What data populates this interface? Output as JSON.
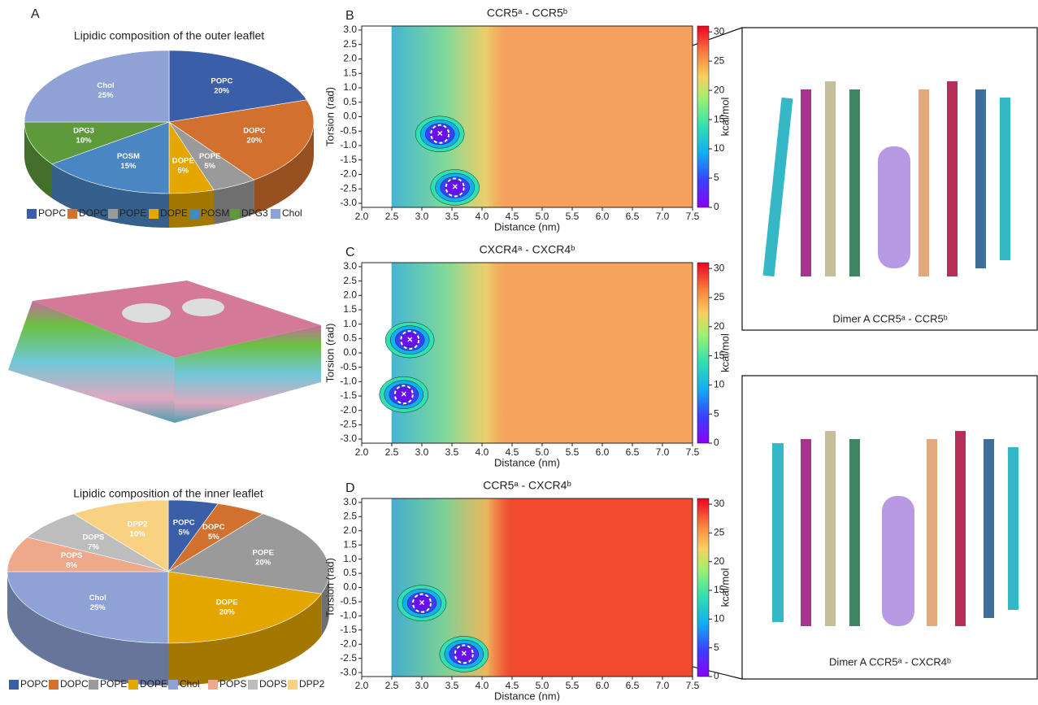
{
  "chart_data": [
    {
      "type": "pie",
      "panel": "A",
      "title": "Lipidic composition of the outer leaflet",
      "categories": [
        "POPC",
        "DOPC",
        "POPE",
        "DOPE",
        "POSM",
        "DPG3",
        "Chol"
      ],
      "values": [
        20,
        20,
        5,
        5,
        15,
        10,
        25
      ],
      "value_labels": [
        "20%",
        "20%",
        "5%",
        "5%",
        "15%",
        "10%",
        "25%"
      ],
      "colors": [
        "#3b5ea8",
        "#d2712d",
        "#9a9a9a",
        "#e3a700",
        "#4a86c1",
        "#5e9a3c",
        "#8ea2d5"
      ]
    },
    {
      "type": "pie",
      "title": "Lipidic composition of the inner leaflet",
      "categories": [
        "POPC",
        "DOPC",
        "POPE",
        "DOPE",
        "Chol",
        "POPS",
        "DOPS",
        "DPP2"
      ],
      "values": [
        5,
        5,
        20,
        20,
        25,
        8,
        7,
        10
      ],
      "value_labels": [
        "5%",
        "5%",
        "20%",
        "20%",
        "25%",
        "8%",
        "7%",
        "10%"
      ],
      "colors": [
        "#3b5ea8",
        "#d2712d",
        "#9a9a9a",
        "#e3a700",
        "#8ea2d5",
        "#eea88b",
        "#bdbdbd",
        "#f8d183"
      ]
    },
    {
      "type": "contour",
      "panel": "B",
      "title": "CCR5ᵃ  -  CCR5ᵇ",
      "xlabel": "Distance (nm)",
      "ylabel": "Torsion (rad)",
      "colorbar_label": "kcal/mol",
      "xlim": [
        2.0,
        7.5
      ],
      "ylim": [
        -3.14,
        3.14
      ],
      "xticks": [
        {
          "value": 2,
          "label": "2.0"
        },
        {
          "value": 2.5,
          "label": "2.5"
        },
        {
          "value": 3,
          "label": "3.0"
        },
        {
          "value": 3.5,
          "label": "3.5"
        },
        {
          "value": 4,
          "label": "4.0"
        },
        {
          "value": 4.5,
          "label": "4.5"
        },
        {
          "value": 5,
          "label": "5.0"
        },
        {
          "value": 5.5,
          "label": "5.5"
        },
        {
          "value": 6,
          "label": "6.0"
        },
        {
          "value": 6.5,
          "label": "6.5"
        },
        {
          "value": 7,
          "label": "7.0"
        },
        {
          "value": 7.5,
          "label": "7.5"
        }
      ],
      "yticks": [
        {
          "value": -3,
          "label": "-3.0"
        },
        {
          "value": -2.5,
          "label": "-2.5"
        },
        {
          "value": -2,
          "label": "-2.0"
        },
        {
          "value": -1.5,
          "label": "-1.5"
        },
        {
          "value": -1,
          "label": "-1.0"
        },
        {
          "value": -0.5,
          "label": "-0.5"
        },
        {
          "value": 0,
          "label": "0.0"
        },
        {
          "value": 0.5,
          "label": "0.5"
        },
        {
          "value": 1,
          "label": "1.0"
        },
        {
          "value": 1.5,
          "label": "1.5"
        },
        {
          "value": 2,
          "label": "2.0"
        },
        {
          "value": 2.5,
          "label": "2.5"
        },
        {
          "value": 3,
          "label": "3.0"
        }
      ],
      "clim": [
        0,
        31
      ],
      "cticks": [
        0,
        5,
        10,
        15,
        20,
        25,
        30
      ],
      "plateau_color": "#f5a05c",
      "minima": {
        "x": [
          3.3,
          3.55
        ],
        "y": [
          -0.6,
          -2.45
        ]
      }
    },
    {
      "type": "contour",
      "panel": "C",
      "title": "CXCR4ᵃ  -  CXCR4ᵇ",
      "xlabel": "Distance (nm)",
      "ylabel": "Torsion (rad)",
      "colorbar_label": "kcal/mol",
      "xlim": [
        2.0,
        7.5
      ],
      "ylim": [
        -3.14,
        3.14
      ],
      "xticks": [
        {
          "value": 2,
          "label": "2.0"
        },
        {
          "value": 2.5,
          "label": "2.5"
        },
        {
          "value": 3,
          "label": "3.0"
        },
        {
          "value": 3.5,
          "label": "3.5"
        },
        {
          "value": 4,
          "label": "4.0"
        },
        {
          "value": 4.5,
          "label": "4.5"
        },
        {
          "value": 5,
          "label": "5.0"
        },
        {
          "value": 5.5,
          "label": "5.5"
        },
        {
          "value": 6,
          "label": "6.0"
        },
        {
          "value": 6.5,
          "label": "6.5"
        },
        {
          "value": 7,
          "label": "7.0"
        },
        {
          "value": 7.5,
          "label": "7.5"
        }
      ],
      "yticks": [
        {
          "value": -3,
          "label": "-3.0"
        },
        {
          "value": -2.5,
          "label": "-2.5"
        },
        {
          "value": -2,
          "label": "-2.0"
        },
        {
          "value": -1.5,
          "label": "-1.5"
        },
        {
          "value": -1,
          "label": "-1.0"
        },
        {
          "value": -0.5,
          "label": "-0.5"
        },
        {
          "value": 0,
          "label": "0.0"
        },
        {
          "value": 0.5,
          "label": "0.5"
        },
        {
          "value": 1,
          "label": "1.0"
        },
        {
          "value": 1.5,
          "label": "1.5"
        },
        {
          "value": 2,
          "label": "2.0"
        },
        {
          "value": 2.5,
          "label": "2.5"
        },
        {
          "value": 3,
          "label": "3.0"
        }
      ],
      "clim": [
        0,
        31
      ],
      "cticks": [
        0,
        5,
        10,
        15,
        20,
        25,
        30
      ],
      "plateau_color": "#f6a35e",
      "minima": {
        "x": [
          2.8,
          2.7
        ],
        "y": [
          0.45,
          -1.45
        ]
      }
    },
    {
      "type": "contour",
      "panel": "D",
      "title": "CCR5ᵃ  -  CXCR4ᵇ",
      "xlabel": "Distance (nm)",
      "ylabel": "Torsion (rad)",
      "colorbar_label": "kcal/mol",
      "xlim": [
        2.0,
        7.5
      ],
      "ylim": [
        -3.14,
        3.14
      ],
      "xticks": [
        {
          "value": 2,
          "label": "2.0"
        },
        {
          "value": 2.5,
          "label": "2.5"
        },
        {
          "value": 3,
          "label": "3.0"
        },
        {
          "value": 3.5,
          "label": "3.5"
        },
        {
          "value": 4,
          "label": "4.0"
        },
        {
          "value": 4.5,
          "label": "4.5"
        },
        {
          "value": 5,
          "label": "5.0"
        },
        {
          "value": 5.5,
          "label": "5.5"
        },
        {
          "value": 6,
          "label": "6.0"
        },
        {
          "value": 6.5,
          "label": "6.5"
        },
        {
          "value": 7,
          "label": "7.0"
        },
        {
          "value": 7.5,
          "label": "7.5"
        }
      ],
      "yticks": [
        {
          "value": -3,
          "label": "-3.0"
        },
        {
          "value": -2.5,
          "label": "-2.5"
        },
        {
          "value": -2,
          "label": "-2.0"
        },
        {
          "value": -1.5,
          "label": "-1.5"
        },
        {
          "value": -1,
          "label": "-1.0"
        },
        {
          "value": -0.5,
          "label": "-0.5"
        },
        {
          "value": 0,
          "label": "0.0"
        },
        {
          "value": 0.5,
          "label": "0.5"
        },
        {
          "value": 1,
          "label": "1.0"
        },
        {
          "value": 1.5,
          "label": "1.5"
        },
        {
          "value": 2,
          "label": "2.0"
        },
        {
          "value": 2.5,
          "label": "2.5"
        },
        {
          "value": 3,
          "label": "3.0"
        }
      ],
      "clim": [
        0,
        31
      ],
      "cticks": [
        0,
        5,
        10,
        15,
        20,
        25,
        30
      ],
      "plateau_color": "#f04b2e",
      "minima": {
        "x": [
          3.0,
          3.7
        ],
        "y": [
          -0.55,
          -2.35
        ]
      }
    }
  ],
  "structures": [
    {
      "caption": "Dimer A CCR5ᵃ - CCR5ᵇ"
    },
    {
      "caption": "Dimer A CCR5ᵃ - CXCR4ᵇ"
    }
  ]
}
